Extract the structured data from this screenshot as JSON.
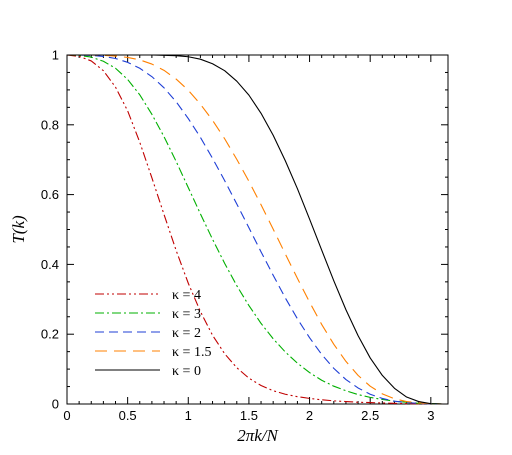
{
  "chart_data": {
    "type": "line",
    "title": "",
    "xlabel": "2πk/N",
    "ylabel": "T(k)",
    "xlim": [
      0,
      3.14159
    ],
    "ylim": [
      0,
      1
    ],
    "xticks": [
      0,
      0.5,
      1,
      1.5,
      2,
      2.5,
      3
    ],
    "xtick_labels": [
      "0",
      "0.5",
      "1",
      "1.5",
      "2",
      "2.5",
      "3"
    ],
    "yticks": [
      0,
      0.2,
      0.4,
      0.6,
      0.8,
      1
    ],
    "ytick_labels": [
      "0",
      "0.2",
      "0.4",
      "0.6",
      "0.8",
      "1"
    ],
    "grid": false,
    "legend_position": "bottom-left",
    "x": [
      0,
      0.1,
      0.2,
      0.3,
      0.4,
      0.5,
      0.6,
      0.7,
      0.8,
      0.9,
      1.0,
      1.1,
      1.2,
      1.3,
      1.4,
      1.5,
      1.6,
      1.7,
      1.8,
      1.9,
      2.0,
      2.1,
      2.2,
      2.3,
      2.4,
      2.5,
      2.6,
      2.7,
      2.8,
      2.9,
      3.0,
      3.1
    ],
    "series": [
      {
        "name": "κ = 4",
        "color": "#c00000",
        "dash": "dash-dot-dot",
        "values": [
          1.0,
          0.996,
          0.983,
          0.955,
          0.908,
          0.84,
          0.75,
          0.648,
          0.543,
          0.44,
          0.346,
          0.265,
          0.197,
          0.144,
          0.104,
          0.074,
          0.053,
          0.038,
          0.028,
          0.021,
          0.016,
          0.012,
          0.009,
          0.007,
          0.005,
          0.004,
          0.003,
          0.002,
          0.001,
          0.0005,
          0.0002,
          0.0
        ]
      },
      {
        "name": "κ = 3",
        "color": "#00b000",
        "dash": "dash-dot",
        "values": [
          1.0,
          0.999,
          0.994,
          0.982,
          0.962,
          0.93,
          0.886,
          0.83,
          0.766,
          0.695,
          0.62,
          0.545,
          0.472,
          0.403,
          0.339,
          0.282,
          0.231,
          0.187,
          0.149,
          0.117,
          0.09,
          0.068,
          0.051,
          0.038,
          0.027,
          0.019,
          0.013,
          0.008,
          0.005,
          0.002,
          0.001,
          0.0
        ]
      },
      {
        "name": "κ = 2",
        "color": "#1f3fd6",
        "dash": "dash",
        "values": [
          1.0,
          1.0,
          0.999,
          0.996,
          0.99,
          0.979,
          0.962,
          0.938,
          0.906,
          0.866,
          0.818,
          0.764,
          0.704,
          0.64,
          0.573,
          0.505,
          0.436,
          0.369,
          0.304,
          0.244,
          0.19,
          0.142,
          0.102,
          0.07,
          0.046,
          0.028,
          0.016,
          0.008,
          0.004,
          0.002,
          0.0005,
          0.0
        ]
      },
      {
        "name": "κ = 1.5",
        "color": "#ff8000",
        "dash": "long-dash",
        "values": [
          1.0,
          1.0,
          1.0,
          0.999,
          0.997,
          0.993,
          0.986,
          0.974,
          0.956,
          0.931,
          0.899,
          0.859,
          0.813,
          0.76,
          0.701,
          0.638,
          0.571,
          0.501,
          0.43,
          0.36,
          0.292,
          0.228,
          0.171,
          0.122,
          0.082,
          0.051,
          0.029,
          0.015,
          0.007,
          0.003,
          0.001,
          0.0
        ]
      },
      {
        "name": "κ = 0",
        "color": "#000000",
        "dash": "solid",
        "values": [
          1.0,
          1.0,
          1.0,
          1.0,
          1.0,
          1.0,
          1.0,
          1.0,
          0.999,
          0.998,
          0.995,
          0.988,
          0.975,
          0.955,
          0.925,
          0.885,
          0.833,
          0.77,
          0.697,
          0.617,
          0.53,
          0.441,
          0.353,
          0.27,
          0.196,
          0.132,
          0.082,
          0.045,
          0.02,
          0.007,
          0.001,
          0.0
        ]
      }
    ]
  }
}
